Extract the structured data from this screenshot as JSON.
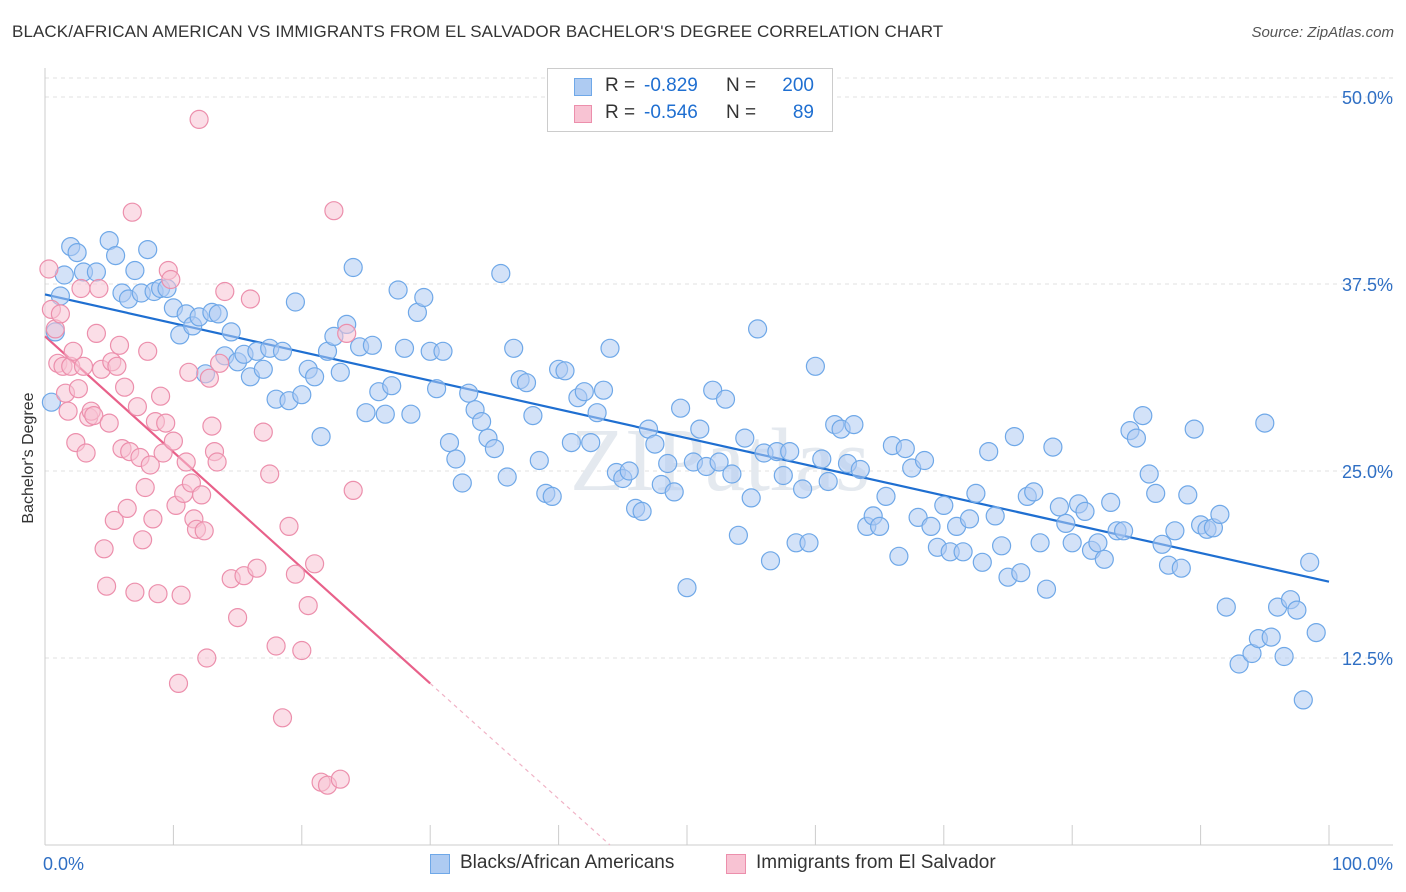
{
  "chart_data": {
    "type": "scatter",
    "title": "BLACK/AFRICAN AMERICAN VS IMMIGRANTS FROM EL SALVADOR BACHELOR'S DEGREE CORRELATION CHART",
    "source": "Source: ZipAtlas.com",
    "xlabel": "",
    "ylabel": "Bachelor's Degree",
    "xlim": [
      0,
      100
    ],
    "ylim": [
      0,
      50
    ],
    "x_tick_labels": [
      "0.0%",
      "100.0%"
    ],
    "y_ticks": [
      {
        "value": 50,
        "label": "50.0%"
      },
      {
        "value": 37.5,
        "label": "37.5%"
      },
      {
        "value": 25,
        "label": "25.0%"
      },
      {
        "value": 12.5,
        "label": "12.5%"
      }
    ],
    "grid": true,
    "watermark": "ZIPatlas",
    "legend_stats": [
      {
        "r_label": "R =",
        "r": "-0.829",
        "n_label": "N =",
        "n": "200"
      },
      {
        "r_label": "R =",
        "r": "-0.546",
        "n_label": "N =",
        "n": "89"
      }
    ],
    "series": [
      {
        "name": "Blacks/African Americans",
        "color": "#6fa8e8",
        "fill": "#aecbf2",
        "line_color": "#1f6fd1",
        "trend": {
          "x": [
            0,
            100
          ],
          "y": [
            36.8,
            17.6
          ]
        },
        "points": [
          [
            0.5,
            29.6
          ],
          [
            0.8,
            34.3
          ],
          [
            1.2,
            36.7
          ],
          [
            1.5,
            38.1
          ],
          [
            2,
            40
          ],
          [
            2.5,
            39.6
          ],
          [
            3,
            38.3
          ],
          [
            4,
            38.3
          ],
          [
            5,
            40.4
          ],
          [
            5.5,
            39.4
          ],
          [
            6,
            36.9
          ],
          [
            6.5,
            36.5
          ],
          [
            7,
            38.4
          ],
          [
            7.5,
            36.9
          ],
          [
            8,
            39.8
          ],
          [
            8.5,
            37
          ],
          [
            9,
            37.2
          ],
          [
            9.5,
            37.2
          ],
          [
            10,
            35.9
          ],
          [
            10.5,
            34.1
          ],
          [
            11,
            35.5
          ],
          [
            11.5,
            34.7
          ],
          [
            12,
            35.3
          ],
          [
            12.5,
            31.5
          ],
          [
            13,
            35.6
          ],
          [
            13.5,
            35.5
          ],
          [
            14,
            32.7
          ],
          [
            14.5,
            34.3
          ],
          [
            15,
            32.3
          ],
          [
            15.5,
            32.8
          ],
          [
            16,
            31.3
          ],
          [
            16.5,
            33
          ],
          [
            17,
            31.8
          ],
          [
            17.5,
            33.2
          ],
          [
            18,
            29.8
          ],
          [
            18.5,
            33
          ],
          [
            19,
            29.7
          ],
          [
            19.5,
            36.3
          ],
          [
            20,
            30.1
          ],
          [
            20.5,
            31.8
          ],
          [
            21,
            31.3
          ],
          [
            21.5,
            27.3
          ],
          [
            22,
            33
          ],
          [
            22.5,
            34
          ],
          [
            23,
            31.6
          ],
          [
            23.5,
            34.8
          ],
          [
            24,
            38.6
          ],
          [
            24.5,
            33.3
          ],
          [
            25,
            28.9
          ],
          [
            25.5,
            33.4
          ],
          [
            26,
            30.3
          ],
          [
            26.5,
            28.8
          ],
          [
            27,
            30.7
          ],
          [
            27.5,
            37.1
          ],
          [
            28,
            33.2
          ],
          [
            28.5,
            28.8
          ],
          [
            29,
            35.6
          ],
          [
            29.5,
            36.6
          ],
          [
            30,
            33
          ],
          [
            30.5,
            30.5
          ],
          [
            31,
            33
          ],
          [
            31.5,
            26.9
          ],
          [
            32,
            25.8
          ],
          [
            32.5,
            24.2
          ],
          [
            33,
            30.2
          ],
          [
            33.5,
            29.1
          ],
          [
            34,
            28.3
          ],
          [
            34.5,
            27.2
          ],
          [
            35,
            26.5
          ],
          [
            35.5,
            38.2
          ],
          [
            36,
            24.6
          ],
          [
            36.5,
            33.2
          ],
          [
            37,
            31.1
          ],
          [
            37.5,
            30.9
          ],
          [
            38,
            28.7
          ],
          [
            38.5,
            25.7
          ],
          [
            39,
            23.5
          ],
          [
            39.5,
            23.3
          ],
          [
            40,
            31.8
          ],
          [
            40.5,
            31.7
          ],
          [
            41,
            26.9
          ],
          [
            41.5,
            29.9
          ],
          [
            42,
            30.3
          ],
          [
            42.5,
            26.9
          ],
          [
            43,
            28.9
          ],
          [
            43.5,
            30.4
          ],
          [
            44,
            33.2
          ],
          [
            44.5,
            24.9
          ],
          [
            45,
            24.5
          ],
          [
            45.5,
            25
          ],
          [
            46,
            22.5
          ],
          [
            46.5,
            22.3
          ],
          [
            47,
            27.8
          ],
          [
            47.5,
            26.8
          ],
          [
            48,
            24.1
          ],
          [
            48.5,
            25.5
          ],
          [
            49,
            23.6
          ],
          [
            49.5,
            29.2
          ],
          [
            50,
            17.2
          ],
          [
            50.5,
            25.6
          ],
          [
            51,
            27.8
          ],
          [
            51.5,
            25.3
          ],
          [
            52,
            30.4
          ],
          [
            52.5,
            25.6
          ],
          [
            53,
            29.8
          ],
          [
            53.5,
            24.8
          ],
          [
            54,
            20.7
          ],
          [
            54.5,
            27.2
          ],
          [
            55,
            23.2
          ],
          [
            55.5,
            34.5
          ],
          [
            56,
            26.2
          ],
          [
            56.5,
            19
          ],
          [
            57,
            26.3
          ],
          [
            57.5,
            24.7
          ],
          [
            58,
            26.3
          ],
          [
            58.5,
            20.2
          ],
          [
            59,
            23.8
          ],
          [
            59.5,
            20.2
          ],
          [
            60,
            32
          ],
          [
            60.5,
            25.8
          ],
          [
            61,
            24.3
          ],
          [
            61.5,
            28.1
          ],
          [
            62,
            27.8
          ],
          [
            62.5,
            25.5
          ],
          [
            63,
            28.1
          ],
          [
            63.5,
            25.1
          ],
          [
            64,
            21.3
          ],
          [
            64.5,
            22
          ],
          [
            65,
            21.3
          ],
          [
            65.5,
            23.3
          ],
          [
            66,
            26.7
          ],
          [
            66.5,
            19.3
          ],
          [
            67,
            26.5
          ],
          [
            67.5,
            25.2
          ],
          [
            68,
            21.9
          ],
          [
            68.5,
            25.7
          ],
          [
            69,
            21.3
          ],
          [
            69.5,
            19.9
          ],
          [
            70,
            22.7
          ],
          [
            70.5,
            19.6
          ],
          [
            71,
            21.3
          ],
          [
            71.5,
            19.6
          ],
          [
            72,
            21.8
          ],
          [
            72.5,
            23.5
          ],
          [
            73,
            18.9
          ],
          [
            73.5,
            26.3
          ],
          [
            74,
            22
          ],
          [
            74.5,
            20
          ],
          [
            75,
            17.9
          ],
          [
            75.5,
            27.3
          ],
          [
            76,
            18.2
          ],
          [
            76.5,
            23.3
          ],
          [
            77,
            23.6
          ],
          [
            77.5,
            20.2
          ],
          [
            78,
            17.1
          ],
          [
            78.5,
            26.6
          ],
          [
            79,
            22.6
          ],
          [
            79.5,
            21.5
          ],
          [
            80,
            20.2
          ],
          [
            80.5,
            22.8
          ],
          [
            81,
            22.3
          ],
          [
            81.5,
            19.7
          ],
          [
            82,
            20.2
          ],
          [
            82.5,
            19.1
          ],
          [
            83,
            22.9
          ],
          [
            83.5,
            21
          ],
          [
            84,
            21
          ],
          [
            84.5,
            27.7
          ],
          [
            85,
            27.2
          ],
          [
            85.5,
            28.7
          ],
          [
            86,
            24.8
          ],
          [
            86.5,
            23.5
          ],
          [
            87,
            20.1
          ],
          [
            87.5,
            18.7
          ],
          [
            88,
            21
          ],
          [
            88.5,
            18.5
          ],
          [
            89,
            23.4
          ],
          [
            89.5,
            27.8
          ],
          [
            90,
            21.4
          ],
          [
            90.5,
            21.1
          ],
          [
            91,
            21.2
          ],
          [
            91.5,
            22.1
          ],
          [
            92,
            15.9
          ],
          [
            93,
            12.1
          ],
          [
            94,
            12.8
          ],
          [
            94.5,
            13.8
          ],
          [
            95,
            28.2
          ],
          [
            95.5,
            13.9
          ],
          [
            96,
            15.9
          ],
          [
            96.5,
            12.6
          ],
          [
            97,
            16.4
          ],
          [
            97.5,
            15.7
          ],
          [
            98,
            9.7
          ],
          [
            98.5,
            18.9
          ],
          [
            99,
            14.2
          ]
        ]
      },
      {
        "name": "Immigrants from El Salvador",
        "color": "#ec8fac",
        "fill": "#f8c3d3",
        "line_color": "#e8618a",
        "trend": {
          "x": [
            0,
            30
          ],
          "y": [
            34,
            10.8
          ]
        },
        "trend_extension": {
          "x": [
            30,
            44
          ],
          "y": [
            10.8,
            0
          ]
        },
        "points": [
          [
            0.3,
            38.5
          ],
          [
            0.5,
            35.8
          ],
          [
            0.8,
            34.5
          ],
          [
            1,
            32.2
          ],
          [
            1.2,
            35.5
          ],
          [
            1.4,
            32
          ],
          [
            1.6,
            30.2
          ],
          [
            1.8,
            29
          ],
          [
            2,
            32
          ],
          [
            2.2,
            33
          ],
          [
            2.4,
            26.9
          ],
          [
            2.6,
            30.5
          ],
          [
            2.8,
            37.2
          ],
          [
            3,
            32
          ],
          [
            3.2,
            26.2
          ],
          [
            3.4,
            28.6
          ],
          [
            3.6,
            29
          ],
          [
            3.8,
            28.7
          ],
          [
            4,
            34.2
          ],
          [
            4.2,
            37.2
          ],
          [
            4.4,
            31.8
          ],
          [
            4.6,
            19.8
          ],
          [
            4.8,
            17.3
          ],
          [
            5,
            28.2
          ],
          [
            5.2,
            32.3
          ],
          [
            5.4,
            21.7
          ],
          [
            5.6,
            32
          ],
          [
            5.8,
            33.4
          ],
          [
            6,
            26.5
          ],
          [
            6.2,
            30.6
          ],
          [
            6.4,
            22.5
          ],
          [
            6.6,
            26.3
          ],
          [
            6.8,
            42.3
          ],
          [
            7,
            16.9
          ],
          [
            7.2,
            29.3
          ],
          [
            7.4,
            25.9
          ],
          [
            7.6,
            20.4
          ],
          [
            7.8,
            23.9
          ],
          [
            8,
            33
          ],
          [
            8.2,
            25.4
          ],
          [
            8.4,
            21.8
          ],
          [
            8.6,
            28.3
          ],
          [
            8.8,
            16.8
          ],
          [
            9,
            30
          ],
          [
            9.2,
            26.2
          ],
          [
            9.4,
            28.2
          ],
          [
            9.6,
            38.4
          ],
          [
            9.8,
            37.8
          ],
          [
            10,
            27
          ],
          [
            10.2,
            22.7
          ],
          [
            10.4,
            10.8
          ],
          [
            10.6,
            16.7
          ],
          [
            10.8,
            23.5
          ],
          [
            11,
            25.6
          ],
          [
            11.2,
            31.6
          ],
          [
            11.4,
            24.2
          ],
          [
            11.6,
            21.8
          ],
          [
            11.8,
            21.1
          ],
          [
            12,
            48.5
          ],
          [
            12.2,
            23.4
          ],
          [
            12.4,
            21
          ],
          [
            12.6,
            12.5
          ],
          [
            12.8,
            31.2
          ],
          [
            13,
            28
          ],
          [
            13.2,
            26.3
          ],
          [
            13.4,
            25.6
          ],
          [
            13.6,
            32.2
          ],
          [
            14,
            37
          ],
          [
            14.5,
            17.8
          ],
          [
            15,
            15.2
          ],
          [
            15.5,
            18
          ],
          [
            16,
            36.5
          ],
          [
            16.5,
            18.5
          ],
          [
            17,
            27.6
          ],
          [
            17.5,
            24.8
          ],
          [
            18,
            13.3
          ],
          [
            18.5,
            8.5
          ],
          [
            19,
            21.3
          ],
          [
            19.5,
            18.1
          ],
          [
            20,
            13
          ],
          [
            20.5,
            16
          ],
          [
            21,
            18.8
          ],
          [
            21.5,
            4.2
          ],
          [
            22,
            4
          ],
          [
            22.5,
            42.4
          ],
          [
            23,
            4.4
          ],
          [
            23.5,
            34.2
          ],
          [
            24,
            23.7
          ]
        ]
      }
    ]
  },
  "legend": {
    "series1_label": "Blacks/African Americans",
    "series2_label": "Immigrants from El Salvador"
  }
}
